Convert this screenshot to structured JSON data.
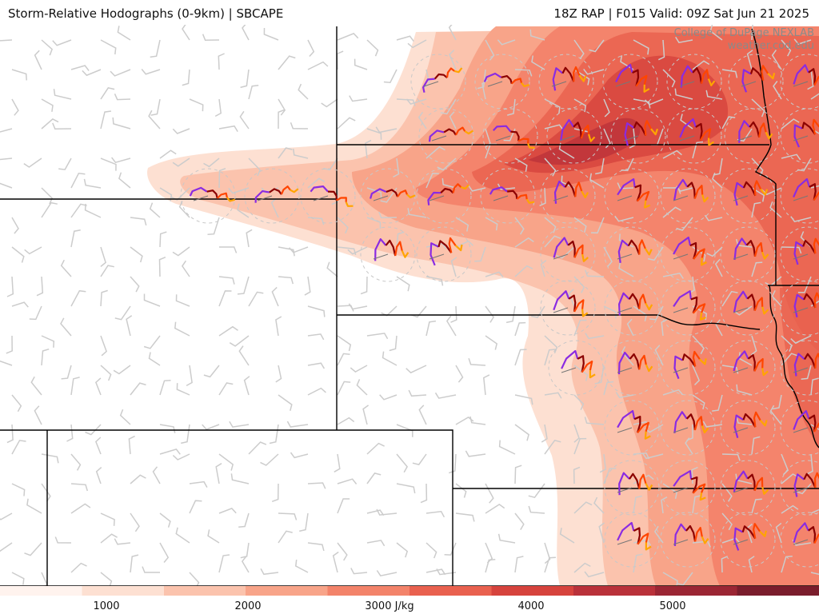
{
  "header": {
    "left_title": "Storm-Relative Hodographs (0-9km) | SBCAPE",
    "right_title": "18Z RAP | F015 Valid: 09Z Sat Jun 21 2025"
  },
  "credits": {
    "line1": "College of DuPage NEXLAB",
    "line2": "weather.cod.edu"
  },
  "colorbar": {
    "labels": [
      "1000",
      "2000",
      "3000 J/kg",
      "4000",
      "5000"
    ],
    "colors": [
      "#fff3ee",
      "#fde0d2",
      "#fbc3ad",
      "#f8a489",
      "#f3836a",
      "#e9614f",
      "#d6433d",
      "#b9313a",
      "#9b2634",
      "#7a1d2c"
    ]
  },
  "colors": {
    "boundary": "#000000",
    "barb": "#cccccc",
    "hodo_low": "#8a2be2",
    "hodo_mid": "#8b0000",
    "hodo_upper": "#ff4500",
    "hodo_top": "#ffa500"
  }
}
